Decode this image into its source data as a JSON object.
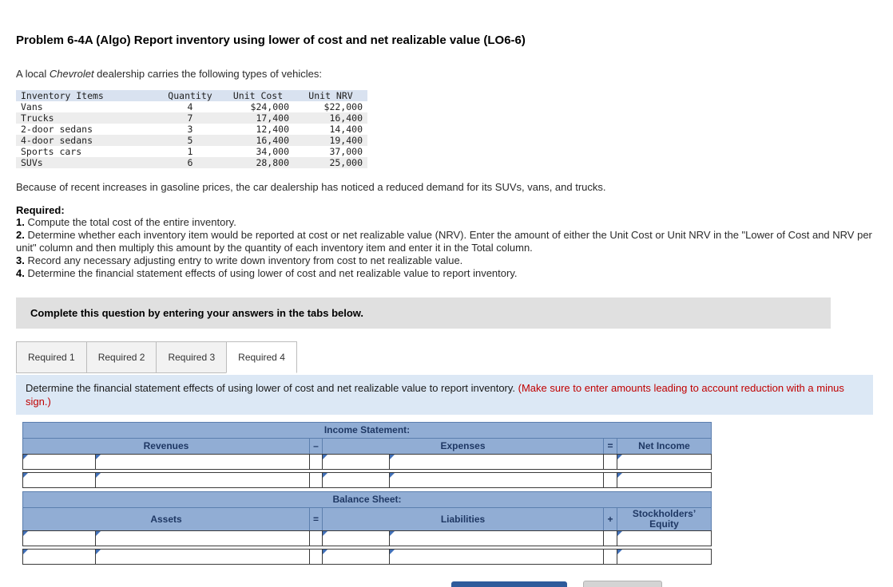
{
  "problem": {
    "title": "Problem 6-4A (Algo) Report inventory using lower of cost and net realizable value (LO6-6)",
    "intro_pre": "A local ",
    "intro_italic": "Chevrolet",
    "intro_post": " dealership carries the following types of vehicles:",
    "note": "Because of recent increases in gasoline prices, the car dealership has noticed a reduced demand for its SUVs, vans, and trucks.",
    "required_label": "Required:",
    "requirements": [
      {
        "num": "1.",
        "text": " Compute the total cost of the entire inventory."
      },
      {
        "num": "2.",
        "text": " Determine whether each inventory item would be reported at cost or net realizable value (NRV). Enter the amount of either the Unit Cost or Unit NRV in the \"Lower of Cost and NRV per unit\" column and then multiply this amount by the quantity of each inventory item and enter it in the Total column."
      },
      {
        "num": "3.",
        "text": " Record any necessary adjusting entry to write down inventory from cost to net realizable value."
      },
      {
        "num": "4.",
        "text": " Determine the financial statement effects of using lower of cost and net realizable value to report inventory."
      }
    ]
  },
  "inventory_table": {
    "headers": [
      "Inventory Items",
      "Quantity",
      "Unit Cost",
      "Unit NRV"
    ],
    "rows": [
      [
        "Vans",
        "4",
        "$24,000",
        "$22,000"
      ],
      [
        "Trucks",
        "7",
        "17,400",
        "16,400"
      ],
      [
        "2-door sedans",
        "3",
        "12,400",
        "14,400"
      ],
      [
        "4-door sedans",
        "5",
        "16,400",
        "19,400"
      ],
      [
        "Sports cars",
        "1",
        "34,000",
        "37,000"
      ],
      [
        "SUVs",
        "6",
        "28,800",
        "25,000"
      ]
    ]
  },
  "instruction_panel": {
    "text": "Complete this question by entering your answers in the tabs below."
  },
  "tabs": [
    {
      "label": "Required 1"
    },
    {
      "label": "Required 2"
    },
    {
      "label": "Required 3"
    },
    {
      "label": "Required 4"
    }
  ],
  "task": {
    "text": "Determine the financial statement effects of using lower of cost and net realizable value to report inventory. ",
    "warning": "(Make sure to enter amounts leading to account reduction with a minus sign.)"
  },
  "effects_table": {
    "income_statement_title": "Income Statement:",
    "is_headers": {
      "col1": "Revenues",
      "op1": "–",
      "col2": "Expenses",
      "op2": "=",
      "col3": "Net Income"
    },
    "balance_sheet_title": "Balance Sheet:",
    "bs_headers": {
      "col1": "Assets",
      "op1": "=",
      "col2": "Liabilities",
      "op2": "+",
      "col3": "Stockholders’ Equity"
    }
  }
}
